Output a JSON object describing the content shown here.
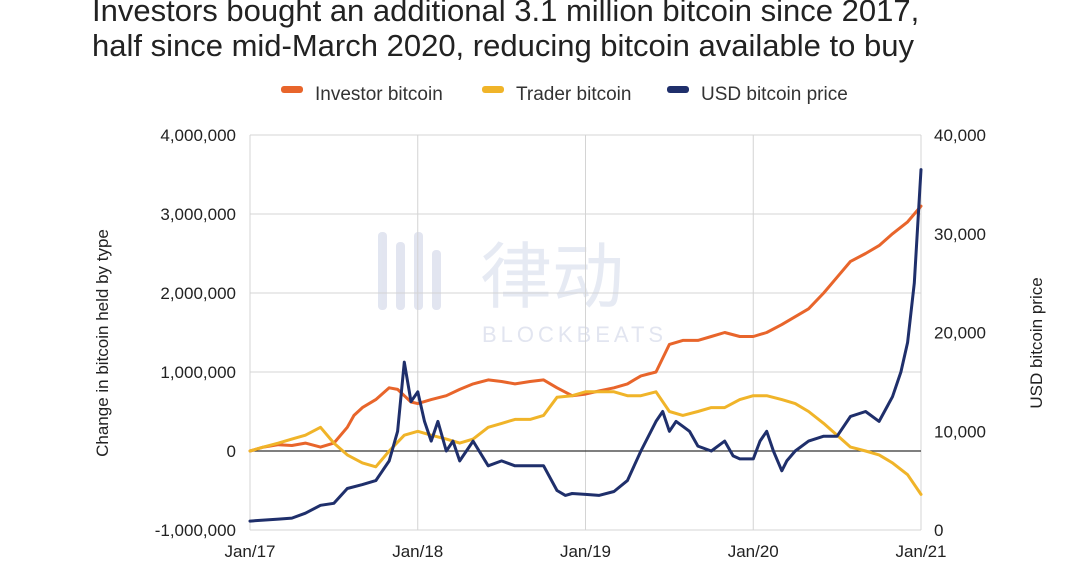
{
  "chart_data": {
    "type": "line",
    "title": [
      "Investors bought an additional 3.1 million bitcoin since 2017,",
      "half since mid-March 2020, reducing bitcoin available to buy"
    ],
    "watermark": {
      "cn": "律动",
      "en": "BLOCKBEATS"
    },
    "xlabel": "",
    "x_ticks": [
      "Jan/17",
      "Jan/18",
      "Jan/19",
      "Jan/20",
      "Jan/21"
    ],
    "x_range": [
      2017.0,
      2021.0
    ],
    "y_left": {
      "label": "Change in bitcoin held by type",
      "range": [
        -1000000,
        4000000
      ],
      "ticks": [
        -1000000,
        0,
        1000000,
        2000000,
        3000000,
        4000000
      ],
      "tick_labels": [
        "-1,000,000",
        "0",
        "1,000,000",
        "2,000,000",
        "3,000,000",
        "4,000,000"
      ]
    },
    "y_right": {
      "label": "USD bitcoin price",
      "range": [
        0,
        40000
      ],
      "ticks": [
        0,
        10000,
        20000,
        30000,
        40000
      ],
      "tick_labels": [
        "0",
        "10,000",
        "20,000",
        "30,000",
        "40,000"
      ]
    },
    "legend": {
      "position": "top-center",
      "entries": [
        "Investor bitcoin",
        "Trader bitcoin",
        "USD bitcoin price"
      ]
    },
    "series": [
      {
        "name": "Investor bitcoin",
        "color": "#e8652b",
        "axis": "left",
        "x": [
          2017.0,
          2017.08,
          2017.17,
          2017.25,
          2017.33,
          2017.42,
          2017.5,
          2017.58,
          2017.62,
          2017.67,
          2017.75,
          2017.83,
          2017.88,
          2017.92,
          2017.96,
          2018.0,
          2018.08,
          2018.17,
          2018.25,
          2018.33,
          2018.42,
          2018.5,
          2018.58,
          2018.67,
          2018.75,
          2018.83,
          2018.92,
          2019.0,
          2019.08,
          2019.17,
          2019.25,
          2019.33,
          2019.42,
          2019.5,
          2019.58,
          2019.67,
          2019.75,
          2019.83,
          2019.92,
          2020.0,
          2020.08,
          2020.17,
          2020.25,
          2020.33,
          2020.42,
          2020.5,
          2020.58,
          2020.67,
          2020.75,
          2020.83,
          2020.92,
          2021.0
        ],
        "values": [
          0,
          50000,
          80000,
          70000,
          100000,
          50000,
          100000,
          300000,
          450000,
          550000,
          650000,
          800000,
          780000,
          700000,
          620000,
          600000,
          650000,
          700000,
          780000,
          850000,
          900000,
          880000,
          850000,
          880000,
          900000,
          800000,
          700000,
          720000,
          760000,
          800000,
          850000,
          950000,
          1000000,
          1350000,
          1400000,
          1400000,
          1450000,
          1500000,
          1450000,
          1450000,
          1500000,
          1600000,
          1700000,
          1800000,
          2000000,
          2200000,
          2400000,
          2500000,
          2600000,
          2750000,
          2900000,
          3100000
        ]
      },
      {
        "name": "Trader bitcoin",
        "color": "#f0b429",
        "axis": "left",
        "x": [
          2017.0,
          2017.08,
          2017.17,
          2017.25,
          2017.33,
          2017.42,
          2017.5,
          2017.58,
          2017.67,
          2017.75,
          2017.83,
          2017.92,
          2018.0,
          2018.08,
          2018.17,
          2018.25,
          2018.33,
          2018.42,
          2018.5,
          2018.58,
          2018.67,
          2018.75,
          2018.83,
          2018.92,
          2019.0,
          2019.08,
          2019.17,
          2019.25,
          2019.33,
          2019.42,
          2019.5,
          2019.58,
          2019.67,
          2019.75,
          2019.83,
          2019.92,
          2020.0,
          2020.08,
          2020.17,
          2020.25,
          2020.33,
          2020.42,
          2020.5,
          2020.58,
          2020.67,
          2020.75,
          2020.83,
          2020.92,
          2021.0
        ],
        "values": [
          0,
          50000,
          100000,
          150000,
          200000,
          300000,
          100000,
          -50000,
          -150000,
          -200000,
          0,
          200000,
          250000,
          200000,
          150000,
          100000,
          150000,
          300000,
          350000,
          400000,
          400000,
          450000,
          680000,
          700000,
          750000,
          750000,
          750000,
          700000,
          700000,
          750000,
          500000,
          450000,
          500000,
          550000,
          550000,
          650000,
          700000,
          700000,
          650000,
          600000,
          500000,
          350000,
          200000,
          50000,
          0,
          -50000,
          -150000,
          -300000,
          -550000
        ]
      },
      {
        "name": "USD bitcoin price",
        "color": "#1f2f6b",
        "axis": "right",
        "x": [
          2017.0,
          2017.08,
          2017.17,
          2017.25,
          2017.33,
          2017.42,
          2017.5,
          2017.58,
          2017.67,
          2017.75,
          2017.83,
          2017.88,
          2017.92,
          2017.96,
          2018.0,
          2018.04,
          2018.08,
          2018.12,
          2018.17,
          2018.21,
          2018.25,
          2018.33,
          2018.42,
          2018.5,
          2018.58,
          2018.67,
          2018.75,
          2018.83,
          2018.88,
          2018.92,
          2019.0,
          2019.08,
          2019.17,
          2019.25,
          2019.33,
          2019.42,
          2019.46,
          2019.5,
          2019.54,
          2019.58,
          2019.62,
          2019.67,
          2019.75,
          2019.83,
          2019.88,
          2019.92,
          2020.0,
          2020.04,
          2020.08,
          2020.12,
          2020.17,
          2020.2,
          2020.25,
          2020.33,
          2020.42,
          2020.5,
          2020.58,
          2020.67,
          2020.75,
          2020.83,
          2020.88,
          2020.92,
          2020.96,
          2021.0
        ],
        "values": [
          900,
          1000,
          1100,
          1200,
          1700,
          2500,
          2700,
          4200,
          4600,
          5000,
          7000,
          10000,
          17000,
          13000,
          14000,
          11000,
          9000,
          11000,
          8000,
          9000,
          7000,
          9000,
          6500,
          7000,
          6500,
          6500,
          6500,
          4000,
          3500,
          3700,
          3600,
          3500,
          3900,
          5000,
          8000,
          11000,
          12000,
          10000,
          11000,
          10500,
          10000,
          8500,
          8000,
          9000,
          7500,
          7200,
          7200,
          9000,
          10000,
          8000,
          6000,
          7000,
          8000,
          9000,
          9500,
          9500,
          11500,
          12000,
          11000,
          13500,
          16000,
          19000,
          25000,
          36500
        ]
      }
    ]
  }
}
